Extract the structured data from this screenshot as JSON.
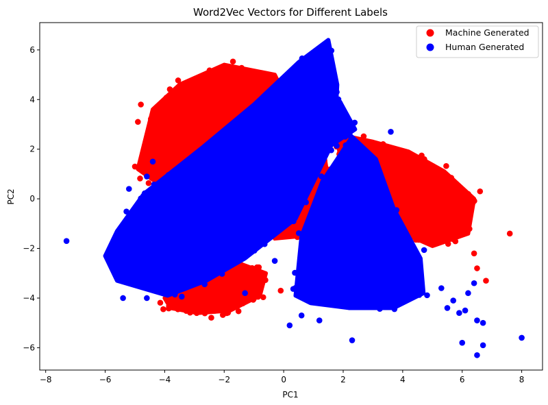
{
  "chart_data": {
    "type": "scatter",
    "title": "Word2Vec Vectors for Different Labels",
    "xlabel": "PC1",
    "ylabel": "PC2",
    "xlim": [
      -8.2,
      8.7
    ],
    "ylim": [
      -6.9,
      7.1
    ],
    "x_ticks": [
      -8,
      -6,
      -4,
      -2,
      0,
      2,
      4,
      6,
      8
    ],
    "x_tick_labels": [
      "−8",
      "−6",
      "−4",
      "−2",
      "0",
      "2",
      "4",
      "6",
      "8"
    ],
    "y_ticks": [
      -6,
      -4,
      -2,
      0,
      2,
      4,
      6
    ],
    "y_tick_labels": [
      "−6",
      "−4",
      "−2",
      "0",
      "2",
      "4",
      "6"
    ],
    "grid": false,
    "legend_position": "top-right",
    "series": [
      {
        "name": "Machine Generated",
        "color": "#ff0000",
        "clusters": [
          {
            "polygon": [
              [
                -4.9,
                1.2
              ],
              [
                -4.4,
                3.6
              ],
              [
                -3.5,
                4.6
              ],
              [
                -2.0,
                5.4
              ],
              [
                -0.3,
                5.0
              ],
              [
                0.3,
                3.5
              ],
              [
                -0.6,
                1.5
              ],
              [
                -2.5,
                0.8
              ],
              [
                -4.2,
                0.6
              ]
            ]
          },
          {
            "polygon": [
              [
                -4.0,
                -4.0
              ],
              [
                -3.0,
                -3.0
              ],
              [
                -1.5,
                -2.6
              ],
              [
                -0.6,
                -3.0
              ],
              [
                -0.8,
                -3.9
              ],
              [
                -1.8,
                -4.5
              ],
              [
                -2.9,
                -4.6
              ],
              [
                -3.8,
                -4.4
              ]
            ]
          },
          {
            "polygon": [
              [
                1.8,
                2.6
              ],
              [
                3.0,
                2.3
              ],
              [
                4.2,
                1.9
              ],
              [
                5.4,
                1.1
              ],
              [
                6.4,
                0.0
              ],
              [
                6.2,
                -1.4
              ],
              [
                5.0,
                -1.9
              ],
              [
                3.3,
                -1.0
              ],
              [
                2.0,
                0.6
              ]
            ]
          },
          {
            "polygon": [
              [
                -0.6,
                -0.5
              ],
              [
                0.3,
                0.8
              ],
              [
                1.3,
                2.3
              ],
              [
                1.5,
                0.7
              ],
              [
                0.6,
                -1.5
              ],
              [
                -0.3,
                -1.6
              ]
            ]
          }
        ],
        "outliers": [
          [
            -5.0,
            1.3
          ],
          [
            -4.8,
            3.8
          ],
          [
            -4.9,
            3.1
          ],
          [
            -0.1,
            -3.7
          ],
          [
            7.6,
            -1.4
          ],
          [
            6.4,
            -2.2
          ],
          [
            6.5,
            -2.8
          ],
          [
            6.8,
            -3.3
          ],
          [
            6.6,
            0.3
          ],
          [
            -1.1,
            -2.9
          ],
          [
            2.1,
            3.0
          ],
          [
            0.8,
            -1.9
          ]
        ]
      },
      {
        "name": "Human Generated",
        "color": "#0000ff",
        "clusters": [
          {
            "polygon": [
              [
                -6.0,
                -2.3
              ],
              [
                -5.6,
                -3.3
              ],
              [
                -3.9,
                -3.9
              ],
              [
                -2.6,
                -3.3
              ],
              [
                -1.3,
                -2.4
              ],
              [
                0.4,
                -0.8
              ],
              [
                1.7,
                2.4
              ],
              [
                1.8,
                4.6
              ],
              [
                1.5,
                6.4
              ],
              [
                0.5,
                5.5
              ],
              [
                -1.0,
                3.8
              ],
              [
                -2.7,
                2.1
              ],
              [
                -4.7,
                0.2
              ],
              [
                -5.6,
                -1.3
              ]
            ]
          },
          {
            "polygon": [
              [
                0.4,
                -3.9
              ],
              [
                0.6,
                -1.5
              ],
              [
                1.3,
                0.7
              ],
              [
                2.3,
                2.5
              ],
              [
                3.1,
                1.6
              ],
              [
                3.7,
                -0.4
              ],
              [
                4.6,
                -2.4
              ],
              [
                4.7,
                -3.8
              ],
              [
                3.7,
                -4.4
              ],
              [
                2.2,
                -4.4
              ],
              [
                0.9,
                -4.2
              ]
            ]
          },
          {
            "polygon": [
              [
                1.0,
                5.3
              ],
              [
                1.9,
                3.9
              ],
              [
                2.4,
                2.8
              ],
              [
                1.4,
                2.0
              ],
              [
                0.8,
                3.2
              ]
            ]
          }
        ],
        "outliers": [
          [
            -7.3,
            -1.7
          ],
          [
            -5.4,
            -4.0
          ],
          [
            -5.2,
            0.4
          ],
          [
            -4.6,
            0.9
          ],
          [
            -4.4,
            1.5
          ],
          [
            -4.6,
            -4.0
          ],
          [
            0.2,
            -5.1
          ],
          [
            2.3,
            -5.7
          ],
          [
            6.5,
            -4.9
          ],
          [
            6.7,
            -5.0
          ],
          [
            6.0,
            -5.8
          ],
          [
            6.7,
            -5.9
          ],
          [
            6.5,
            -6.3
          ],
          [
            8.0,
            -5.6
          ],
          [
            5.5,
            -4.4
          ],
          [
            5.7,
            -4.1
          ],
          [
            5.9,
            -4.6
          ],
          [
            6.1,
            -4.5
          ],
          [
            5.3,
            -3.6
          ],
          [
            6.2,
            -3.8
          ],
          [
            6.4,
            -3.4
          ],
          [
            0.6,
            -4.7
          ],
          [
            1.2,
            -4.9
          ],
          [
            -1.3,
            -3.8
          ],
          [
            -0.3,
            -2.5
          ],
          [
            3.6,
            2.7
          ]
        ]
      }
    ]
  }
}
